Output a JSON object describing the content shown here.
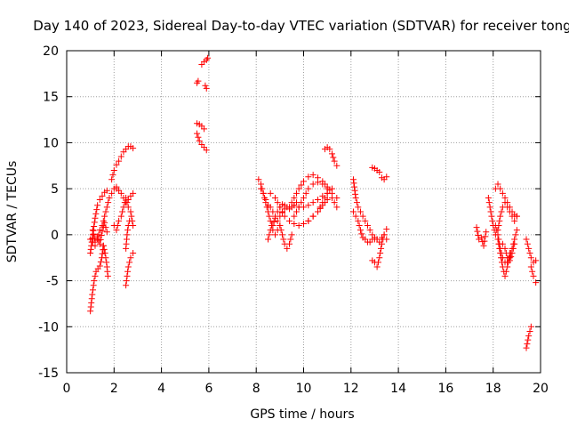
{
  "chart_data": {
    "type": "scatter",
    "title": "Day 140 of 2023, Sidereal Day-to-day VTEC variation (SDTVAR) for receiver tong",
    "xlabel": "GPS time / hours",
    "ylabel": "SDTVAR / TECUs",
    "xlim": [
      0,
      20
    ],
    "ylim": [
      -15,
      20
    ],
    "xticks": [
      "0",
      "2",
      "4",
      "6",
      "8",
      "10",
      "12",
      "14",
      "16",
      "18",
      "20"
    ],
    "yticks": [
      "-15",
      "-10",
      "-5",
      "0",
      "5",
      "10",
      "15",
      "20"
    ],
    "grid": true,
    "marker": "+",
    "color": "#ff0000",
    "series": [
      {
        "name": "SDTVAR",
        "segments": [
          {
            "x": [
              1.0,
              1.08,
              1.16,
              1.24,
              1.32,
              1.4,
              1.48,
              1.55
            ],
            "y": [
              -8.3,
              -6.5,
              -5.0,
              -4.0,
              -3.7,
              -3.4,
              -2.5,
              -1.2
            ]
          },
          {
            "x": [
              1.55,
              1.62,
              1.68,
              1.74
            ],
            "y": [
              -1.2,
              -2.0,
              -3.0,
              -4.5
            ]
          },
          {
            "x": [
              1.0,
              1.1,
              1.2,
              1.3,
              1.4,
              1.5,
              1.6,
              1.7
            ],
            "y": [
              -2.0,
              0.0,
              1.8,
              3.2,
              3.8,
              4.2,
              4.6,
              4.8
            ]
          },
          {
            "x": [
              1.0,
              1.1,
              1.2,
              1.3,
              1.4,
              1.5,
              1.6,
              1.7,
              1.8,
              1.9,
              2.0,
              2.1
            ],
            "y": [
              -0.5,
              -0.8,
              -1.2,
              -0.5,
              0.5,
              1.0,
              2.0,
              3.0,
              4.0,
              4.5,
              5.0,
              5.2
            ]
          },
          {
            "x": [
              1.1,
              1.2,
              1.3,
              1.4,
              1.5,
              1.6,
              1.7
            ],
            "y": [
              0.5,
              -0.8,
              -0.2,
              -1.0,
              0.4,
              1.3,
              0.3
            ]
          },
          {
            "x": [
              1.9,
              2.0,
              2.1,
              2.2,
              2.3,
              2.4,
              2.5,
              2.6,
              2.7,
              2.8
            ],
            "y": [
              6.0,
              7.0,
              7.6,
              8.0,
              8.5,
              9.0,
              9.3,
              9.6,
              9.6,
              9.4
            ]
          },
          {
            "x": [
              2.1,
              2.2,
              2.3,
              2.4,
              2.5,
              2.6,
              2.7,
              2.8
            ],
            "y": [
              5.0,
              4.8,
              4.5,
              4.0,
              3.5,
              3.8,
              4.2,
              4.5
            ]
          },
          {
            "x": [
              2.0,
              2.1,
              2.2,
              2.3,
              2.4,
              2.5,
              2.6,
              2.7,
              2.8
            ],
            "y": [
              1.0,
              0.5,
              1.5,
              2.0,
              3.0,
              4.0,
              3.0,
              2.5,
              1.0
            ]
          },
          {
            "x": [
              2.5,
              2.55,
              2.6,
              2.7,
              2.8
            ],
            "y": [
              -5.5,
              -4.5,
              -3.5,
              -2.5,
              -2.0
            ]
          },
          {
            "x": [
              2.5,
              2.55,
              2.6,
              2.65
            ],
            "y": [
              -1.5,
              0.0,
              1.0,
              1.5
            ]
          },
          {
            "x": [
              5.5,
              5.55
            ],
            "y": [
              16.5,
              16.7
            ]
          },
          {
            "x": [
              5.5,
              5.6,
              5.7,
              5.8
            ],
            "y": [
              12.1,
              12.0,
              11.8,
              11.5
            ]
          },
          {
            "x": [
              5.5,
              5.6
            ],
            "y": [
              11.0,
              10.2
            ]
          },
          {
            "x": [
              5.7,
              5.8,
              5.9
            ],
            "y": [
              9.8,
              9.5,
              9.2
            ]
          },
          {
            "x": [
              5.7,
              5.8,
              5.9,
              5.95
            ],
            "y": [
              18.5,
              18.8,
              19.0,
              19.2
            ]
          },
          {
            "x": [
              5.85,
              5.9
            ],
            "y": [
              16.2,
              15.9
            ]
          },
          {
            "x": [
              8.1,
              8.2,
              8.3,
              8.4,
              8.5,
              8.6,
              8.7,
              8.8,
              8.9,
              9.0
            ],
            "y": [
              6.0,
              5.5,
              4.5,
              3.5,
              2.5,
              1.5,
              0.5,
              0.0,
              0.5,
              1.0
            ]
          },
          {
            "x": [
              8.2,
              8.3,
              8.4,
              8.5,
              8.6,
              8.7,
              8.8,
              8.9,
              9.0,
              9.1,
              9.2,
              9.3,
              9.4,
              9.5
            ],
            "y": [
              5.0,
              4.5,
              3.8,
              3.2,
              3.0,
              2.5,
              2.0,
              1.5,
              1.0,
              0.0,
              -1.0,
              -1.5,
              -1.0,
              0.0
            ]
          },
          {
            "x": [
              8.5,
              8.6,
              8.7,
              8.8,
              8.9,
              9.0,
              9.1,
              9.2,
              9.3,
              9.4,
              9.5,
              9.6,
              9.7
            ],
            "y": [
              -0.5,
              0.5,
              1.0,
              1.8,
              2.5,
              3.0,
              3.3,
              3.2,
              3.0,
              2.8,
              3.0,
              3.2,
              3.5
            ]
          },
          {
            "x": [
              8.6,
              8.8,
              9.0,
              9.2,
              9.4,
              9.6,
              9.8,
              10.0,
              10.2,
              10.4,
              10.6,
              10.8,
              11.0,
              11.2
            ],
            "y": [
              4.5,
              4.0,
              3.0,
              2.0,
              1.5,
              1.2,
              1.0,
              1.2,
              1.5,
              2.0,
              2.5,
              3.5,
              4.5,
              5.0
            ]
          },
          {
            "x": [
              9.0,
              9.2,
              9.4,
              9.6,
              9.8,
              10.0,
              10.2,
              10.4,
              10.6,
              10.8,
              11.0,
              11.2,
              11.4
            ],
            "y": [
              2.0,
              2.8,
              3.0,
              3.2,
              3.0,
              3.0,
              3.2,
              3.5,
              3.8,
              4.2,
              4.5,
              4.0,
              3.0
            ]
          },
          {
            "x": [
              9.4,
              9.6,
              9.8,
              10.0,
              10.2,
              10.4,
              10.6,
              10.8,
              11.0,
              11.2,
              11.4
            ],
            "y": [
              3.0,
              4.0,
              5.0,
              5.8,
              6.3,
              6.5,
              6.2,
              5.8,
              5.2,
              4.5,
              4.0
            ]
          },
          {
            "x": [
              9.6,
              9.8,
              10.0,
              10.2,
              10.4,
              10.6,
              10.8,
              11.0
            ],
            "y": [
              2.0,
              3.0,
              4.0,
              5.0,
              5.5,
              5.7,
              5.5,
              5.0
            ]
          },
          {
            "x": [
              10.2,
              10.4,
              10.6,
              10.8,
              11.0
            ],
            "y": [
              1.5,
              2.0,
              2.5,
              3.2,
              3.8
            ]
          },
          {
            "x": [
              10.9,
              11.0,
              11.1,
              11.2,
              11.3,
              11.4
            ],
            "y": [
              9.3,
              9.5,
              9.3,
              8.8,
              8.0,
              7.5
            ]
          },
          {
            "x": [
              12.1,
              12.2,
              12.3,
              12.4,
              12.5,
              12.6,
              12.7,
              12.8,
              12.9,
              13.0
            ],
            "y": [
              6.0,
              4.0,
              3.0,
              2.5,
              2.0,
              1.5,
              1.0,
              0.5,
              0.0,
              -0.5
            ]
          },
          {
            "x": [
              12.1,
              12.2,
              12.3,
              12.4,
              12.5,
              12.6,
              12.7,
              12.8,
              12.9,
              13.0,
              13.1
            ],
            "y": [
              2.5,
              2.0,
              1.5,
              0.5,
              -0.3,
              -0.5,
              -0.8,
              -0.8,
              -0.5,
              -0.3,
              -0.5
            ]
          },
          {
            "x": [
              12.9,
              13.0,
              13.1,
              13.2,
              13.3,
              13.4,
              13.5
            ],
            "y": [
              7.3,
              7.2,
              7.0,
              6.8,
              6.2,
              6.0,
              6.3
            ]
          },
          {
            "x": [
              12.9,
              13.0,
              13.1,
              13.2,
              13.3,
              13.4,
              13.5
            ],
            "y": [
              -2.8,
              -3.0,
              -3.5,
              -2.5,
              -1.0,
              0.0,
              0.6
            ]
          },
          {
            "x": [
              13.1,
              13.2,
              13.3,
              13.4,
              13.5
            ],
            "y": [
              -0.5,
              -0.8,
              -0.3,
              0.0,
              -0.5
            ]
          },
          {
            "x": [
              17.3,
              17.4,
              17.5,
              17.6,
              17.7
            ],
            "y": [
              0.8,
              -0.5,
              -0.3,
              -1.2,
              0.3
            ]
          },
          {
            "x": [
              17.8,
              17.9,
              18.0,
              18.1,
              18.2,
              18.3,
              18.4,
              18.5,
              18.6,
              18.7,
              18.8,
              18.9,
              19.0
            ],
            "y": [
              4.0,
              2.5,
              1.0,
              0.0,
              0.5,
              2.0,
              3.0,
              3.5,
              3.0,
              2.5,
              2.0,
              1.5,
              2.0
            ]
          },
          {
            "x": [
              18.1,
              18.2,
              18.3,
              18.4,
              18.5,
              18.6,
              18.7,
              18.8,
              18.9,
              19.0
            ],
            "y": [
              5.0,
              5.5,
              5.0,
              4.5,
              4.0,
              3.5,
              3.0,
              2.5,
              2.2,
              2.0
            ]
          },
          {
            "x": [
              18.1,
              18.2,
              18.3,
              18.4,
              18.5,
              18.6,
              18.7,
              18.8,
              18.9,
              19.0
            ],
            "y": [
              1.0,
              0.0,
              -1.5,
              -2.5,
              -3.0,
              -3.0,
              -2.5,
              -1.5,
              -0.5,
              0.5
            ]
          },
          {
            "x": [
              18.2,
              18.3,
              18.4,
              18.5,
              18.6,
              18.7
            ],
            "y": [
              -0.5,
              -2.0,
              -3.5,
              -4.5,
              -3.5,
              -2.0
            ]
          },
          {
            "x": [
              18.4,
              18.5,
              18.6,
              18.7,
              18.8,
              18.9
            ],
            "y": [
              -1.0,
              -1.5,
              -2.5,
              -2.8,
              -2.0,
              -1.0
            ]
          },
          {
            "x": [
              19.4,
              19.5,
              19.6,
              19.7,
              19.8
            ],
            "y": [
              -0.5,
              -1.5,
              -2.5,
              -3.0,
              -2.8
            ]
          },
          {
            "x": [
              19.6,
              19.7,
              19.8
            ],
            "y": [
              -3.5,
              -4.5,
              -5.2
            ]
          },
          {
            "x": [
              19.4,
              19.5,
              19.6
            ],
            "y": [
              -12.3,
              -11.0,
              -10.0
            ]
          }
        ]
      }
    ]
  }
}
